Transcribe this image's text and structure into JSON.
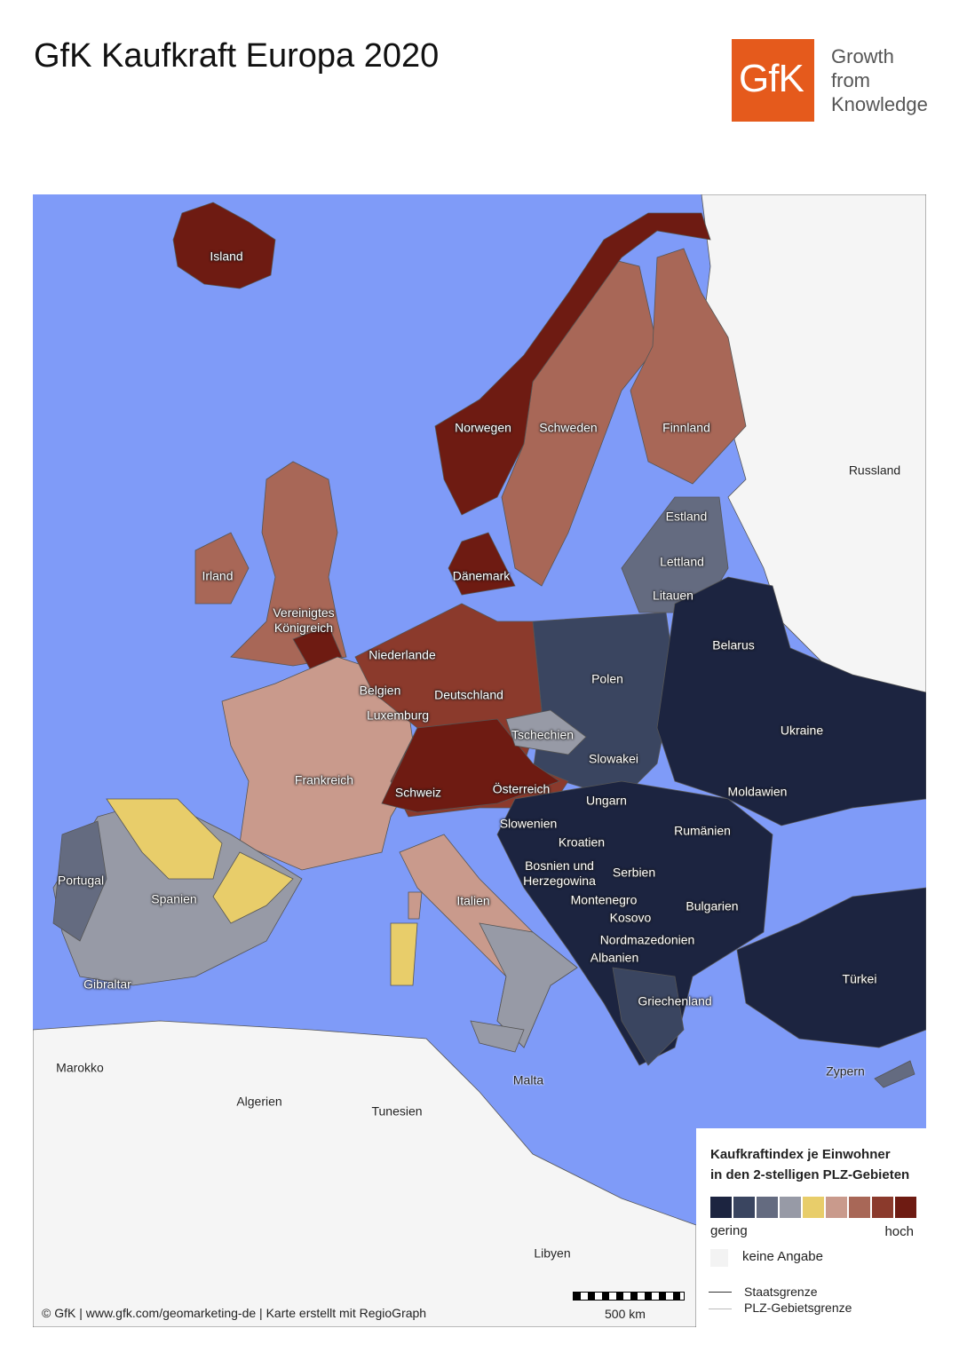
{
  "header": {
    "title": "GfK Kaufkraft Europa 2020",
    "logo_text": "GfK",
    "tagline": [
      "Growth",
      "from",
      "Knowledge"
    ],
    "brand_color": "#e55a1c"
  },
  "map": {
    "ocean_color": "#7f9bf8",
    "no_data_color": "#f5f5f5",
    "labels": {
      "island": "Island",
      "norwegen": "Norwegen",
      "schweden": "Schweden",
      "finnland": "Finnland",
      "russland": "Russland",
      "estland": "Estland",
      "lettland": "Lettland",
      "litauen": "Litauen",
      "irland": "Irland",
      "daenemark": "Dänemark",
      "uk1": "Vereinigtes",
      "uk2": "Königreich",
      "niederlande": "Niederlande",
      "belgien": "Belgien",
      "luxemburg": "Luxemburg",
      "deutschland": "Deutschland",
      "belarus": "Belarus",
      "polen": "Polen",
      "tschechien": "Tschechien",
      "ukraine": "Ukraine",
      "slowakei": "Slowakei",
      "frankreich": "Frankreich",
      "schweiz": "Schweiz",
      "oesterreich": "Österreich",
      "ungarn": "Ungarn",
      "moldawien": "Moldawien",
      "slowenien": "Slowenien",
      "rumaenien": "Rumänien",
      "kroatien": "Kroatien",
      "bosnien1": "Bosnien und",
      "bosnien2": "Herzegowina",
      "serbien": "Serbien",
      "portugal": "Portugal",
      "spanien": "Spanien",
      "italien": "Italien",
      "montenegro": "Montenegro",
      "kosovo": "Kosovo",
      "bulgarien": "Bulgarien",
      "nordmazedonien": "Nordmazedonien",
      "albanien": "Albanien",
      "gibraltar": "Gibraltar",
      "tuerkei": "Türkei",
      "griechenland": "Griechenland",
      "zypern": "Zypern",
      "marokko": "Marokko",
      "malta": "Malta",
      "algerien": "Algerien",
      "tunesien": "Tunesien",
      "libyen": "Libyen"
    }
  },
  "legend": {
    "title_line1": "Kaufkraftindex je Einwohner",
    "title_line2": "in den 2-stelligen PLZ-Gebieten",
    "scale_colors": [
      "#1c2440",
      "#3a4560",
      "#646b80",
      "#979aa6",
      "#e8cd6a",
      "#c99a8c",
      "#a86757",
      "#8b3a2c",
      "#6e1b12"
    ],
    "low_label": "gering",
    "high_label": "hoch",
    "no_data_label": "keine Angabe",
    "state_border_label": "Staatsgrenze",
    "plz_border_label": "PLZ-Gebietsgrenze"
  },
  "footer": {
    "credit": "© GfK | www.gfk.com/geomarketing-de | Karte erstellt mit RegioGraph",
    "scale_label": "500 km"
  }
}
